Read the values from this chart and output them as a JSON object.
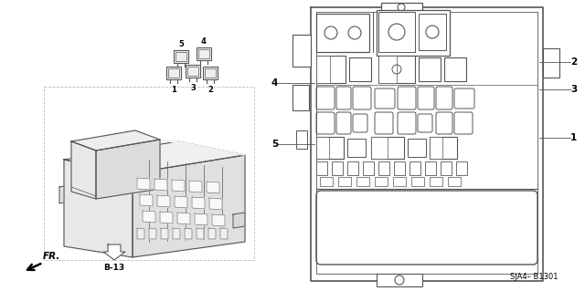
{
  "bg_color": "#ffffff",
  "line_color": "#555555",
  "fig_width": 6.4,
  "fig_height": 3.19,
  "dpi": 100,
  "diagram_code": "SJA4– B1301",
  "ref_code": "B-13"
}
